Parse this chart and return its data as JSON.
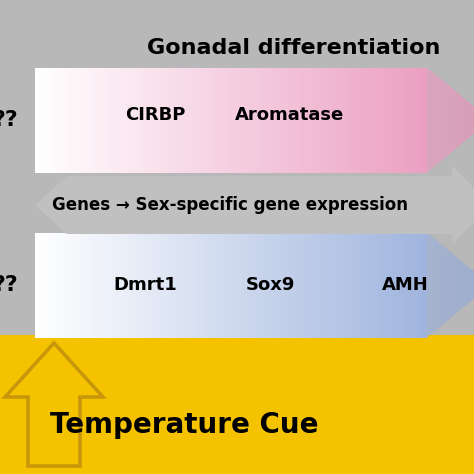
{
  "title": "Gonadal differentiation",
  "title_fontsize": 16,
  "title_color": "#000000",
  "bg_color": "#b8b8b8",
  "bottom_bg_color": "#f5c200",
  "temp_cue_text": "Temperature Cue",
  "temp_cue_fontsize": 20,
  "temp_cue_color": "#000000",
  "arrow1_label_left": "??",
  "arrow1_labels": [
    "CIRBP",
    "Aromatase"
  ],
  "arrow1_gradient_start": "#ffffff",
  "arrow1_gradient_end": "#e890b8",
  "arrow2_text": "Genes → Sex-specific gene expression",
  "arrow2_color": "#c0c0c0",
  "arrow3_label_left": "??",
  "arrow3_labels": [
    "Dmrt1",
    "Sox9",
    "AMH"
  ],
  "arrow3_gradient_start": "#ffffff",
  "arrow3_gradient_end": "#90a8d8",
  "gene_fontsize": 13,
  "arrow2_fontsize": 12,
  "qq_fontsize": 16
}
